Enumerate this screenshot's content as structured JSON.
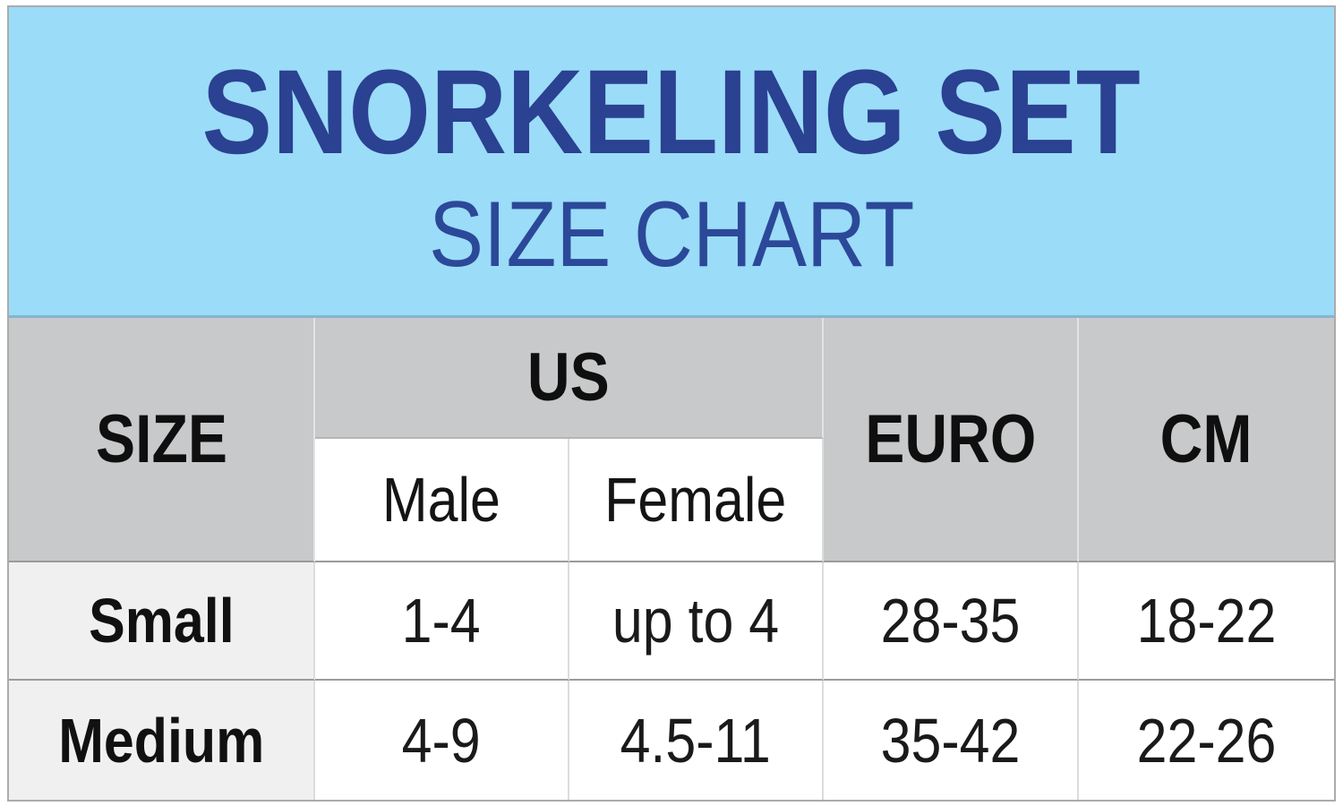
{
  "chart_data": {
    "type": "table",
    "title": "SNORKELING SET",
    "subtitle": "SIZE CHART",
    "header": {
      "size": "SIZE",
      "us": "US",
      "us_sub": [
        "Male",
        "Female"
      ],
      "euro": "EURO",
      "cm": "CM"
    },
    "columns": [
      "SIZE",
      "US Male",
      "US Female",
      "EURO",
      "CM"
    ],
    "rows": [
      {
        "size": "Small",
        "us_male": "1-4",
        "us_female": "up to 4",
        "euro": "28-35",
        "cm": "18-22"
      },
      {
        "size": "Medium",
        "us_male": "4-9",
        "us_female": "4.5-11",
        "euro": "35-42",
        "cm": "22-26"
      }
    ],
    "layout": {
      "header_position": "top",
      "merged_cells": [
        "SIZE spans 2 header rows",
        "US spans Male+Female columns",
        "EURO spans 2 header rows",
        "CM spans 2 header rows"
      ]
    }
  },
  "colors": {
    "banner_background": "#9bdcf8",
    "banner_divider": "#86b4d2",
    "title_navy": "#2b4191",
    "subtitle_blue": "#2c4899",
    "header_cell_gray": "#c8c9ca",
    "size_column_gray": "#f0f0f0",
    "cell_white": "#ffffff",
    "text_black": "#111111",
    "border_gray": "#ababab"
  }
}
